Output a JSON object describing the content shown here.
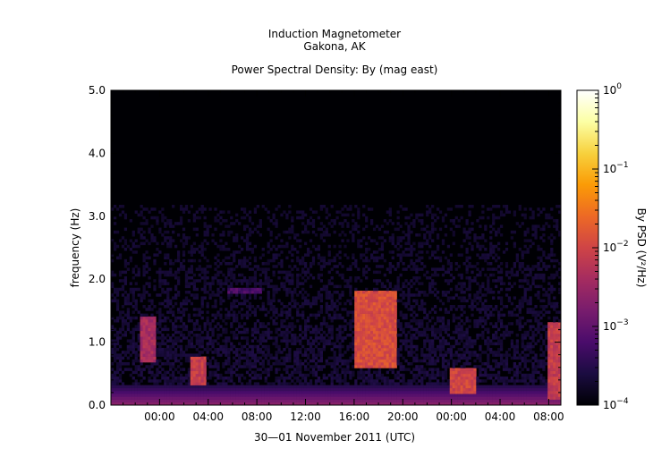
{
  "chart_data": {
    "type": "heatmap",
    "title": "Induction Magnetometer",
    "subtitle": "Gakona, AK",
    "plot_title": "Power Spectral Density: By (mag east)",
    "xlabel": "30—01 November 2011 (UTC)",
    "ylabel": "frequency (Hz)",
    "colorbar_label": "By PSD (V²/Hz)",
    "x_range_hours": [
      -4.0,
      33.0
    ],
    "ylim": [
      0,
      5
    ],
    "x_ticks": [
      {
        "value": 0,
        "label": "00:00"
      },
      {
        "value": 4,
        "label": "04:00"
      },
      {
        "value": 8,
        "label": "08:00"
      },
      {
        "value": 12,
        "label": "12:00"
      },
      {
        "value": 16,
        "label": "16:00"
      },
      {
        "value": 20,
        "label": "20:00"
      },
      {
        "value": 24,
        "label": "00:00"
      },
      {
        "value": 28,
        "label": "04:00"
      },
      {
        "value": 32,
        "label": "08:00"
      }
    ],
    "y_ticks": [
      {
        "value": 0,
        "label": "0.0"
      },
      {
        "value": 1,
        "label": "1.0"
      },
      {
        "value": 2,
        "label": "2.0"
      },
      {
        "value": 3,
        "label": "3.0"
      },
      {
        "value": 4,
        "label": "4.0"
      },
      {
        "value": 5,
        "label": "5.0"
      }
    ],
    "colorbar": {
      "scale": "log",
      "range": [
        0.0001,
        1
      ],
      "ticks": [
        {
          "exp": -4,
          "label": "10",
          "sup": "−4"
        },
        {
          "exp": -3,
          "label": "10",
          "sup": "−3"
        },
        {
          "exp": -2,
          "label": "10",
          "sup": "−2"
        },
        {
          "exp": -1,
          "label": "10",
          "sup": "−1"
        },
        {
          "exp": 0,
          "label": "10",
          "sup": "0"
        }
      ],
      "colormap": [
        "#000004",
        "#1b0c41",
        "#4a0c6b",
        "#781c6d",
        "#a52c60",
        "#cf4446",
        "#ed6925",
        "#fb9b06",
        "#f7d13d",
        "#fcffa4",
        "#ffffff"
      ]
    },
    "features": [
      {
        "name": "noise floor",
        "t": [
          -4,
          33
        ],
        "f": [
          0,
          5
        ],
        "log_psd": -3.8
      },
      {
        "name": "low-frequency band",
        "t": [
          -4,
          33
        ],
        "f": [
          0,
          0.3
        ],
        "log_psd": -2.6
      },
      {
        "name": "Pc1 burst A",
        "t": [
          -1.5,
          -0.2
        ],
        "f": [
          0.7,
          1.4
        ],
        "log_psd": -2.2
      },
      {
        "name": "Pc1 burst B",
        "t": [
          2.5,
          3.8
        ],
        "f": [
          0.3,
          0.75
        ],
        "log_psd": -1.9
      },
      {
        "name": "narrowband line",
        "t": [
          5.5,
          8.3
        ],
        "f": [
          1.83,
          1.83
        ],
        "log_psd": -3.0
      },
      {
        "name": "Pc1 burst C",
        "t": [
          16.0,
          19.5
        ],
        "f": [
          0.6,
          1.8
        ],
        "log_psd": -1.7
      },
      {
        "name": "Pc1 burst D",
        "t": [
          23.8,
          26.0
        ],
        "f": [
          0.2,
          0.6
        ],
        "log_psd": -1.8
      },
      {
        "name": "Pc1 burst E",
        "t": [
          32.0,
          32.9
        ],
        "f": [
          0.1,
          1.3
        ],
        "log_psd": -1.9
      }
    ]
  }
}
